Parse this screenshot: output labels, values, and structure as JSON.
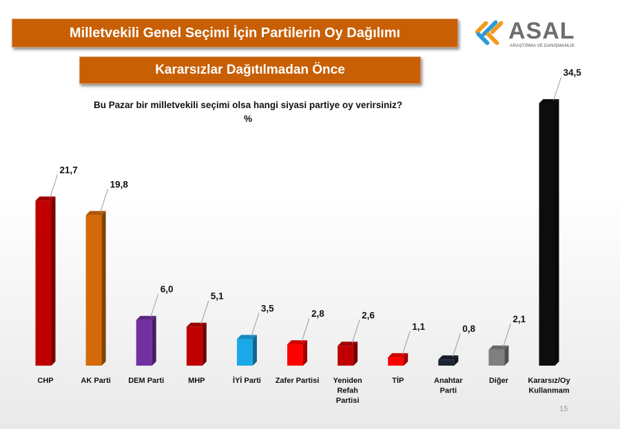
{
  "header": {
    "title": "Milletvekili Genel Seçimi İçin Partilerin Oy Dağılımı",
    "subtitle": "Kararsızlar Dağıtılmadan Önce",
    "logo_text": "ASAL",
    "logo_tagline": "ARAŞTIRMA VE DANIŞMANLIK"
  },
  "question": {
    "text": "Bu Pazar bir milletvekili seçimi olsa hangi siyasi partiye oy verirsiniz?",
    "unit": "%"
  },
  "page_number": "15",
  "colors": {
    "banner": "#c85f04",
    "logo_orange": "#f29a1f",
    "logo_blue": "#2d9ad6",
    "logo_gray": "#6d6e70"
  },
  "chart_data": {
    "type": "bar",
    "title": "",
    "xlabel": "",
    "ylabel": "",
    "ylim": [
      0,
      35
    ],
    "grid": false,
    "categories": [
      [
        "CHP"
      ],
      [
        "AK Parti"
      ],
      [
        "DEM Parti"
      ],
      [
        "MHP"
      ],
      [
        "İYİ Parti"
      ],
      [
        "Zafer Partisi"
      ],
      [
        "Yeniden",
        "Refah",
        "Partisi"
      ],
      [
        "TİP"
      ],
      [
        "Anahtar",
        "Parti"
      ],
      [
        "Diğer"
      ],
      [
        "Kararsız/Oy",
        "Kullanmam"
      ]
    ],
    "values": [
      21.7,
      19.8,
      6.0,
      5.1,
      3.5,
      2.8,
      2.6,
      1.1,
      0.8,
      2.1,
      34.5
    ],
    "value_labels": [
      "21,7",
      "19,8",
      "6,0",
      "5,1",
      "3,5",
      "2,8",
      "2,6",
      "1,1",
      "0,8",
      "2,1",
      "34,5"
    ],
    "colors": [
      "#c00000",
      "#d46a0a",
      "#7030a0",
      "#c00000",
      "#1aa8e8",
      "#ff0000",
      "#c00000",
      "#ff0000",
      "#1c2331",
      "#7f7f7f",
      "#0d0d0d"
    ]
  }
}
